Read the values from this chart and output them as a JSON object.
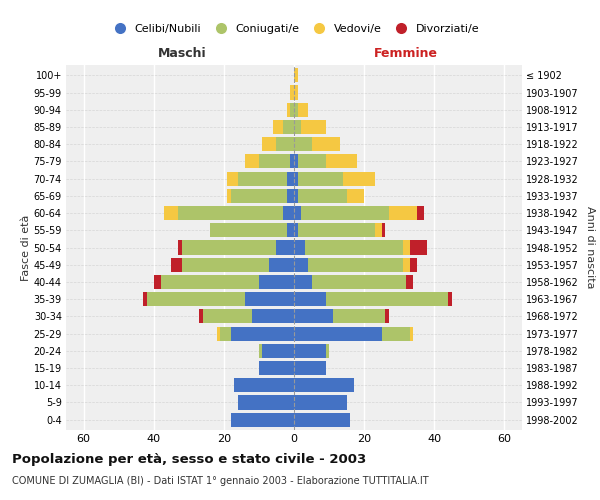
{
  "age_groups": [
    "0-4",
    "5-9",
    "10-14",
    "15-19",
    "20-24",
    "25-29",
    "30-34",
    "35-39",
    "40-44",
    "45-49",
    "50-54",
    "55-59",
    "60-64",
    "65-69",
    "70-74",
    "75-79",
    "80-84",
    "85-89",
    "90-94",
    "95-99",
    "100+"
  ],
  "birth_years": [
    "1998-2002",
    "1993-1997",
    "1988-1992",
    "1983-1987",
    "1978-1982",
    "1973-1977",
    "1968-1972",
    "1963-1967",
    "1958-1962",
    "1953-1957",
    "1948-1952",
    "1943-1947",
    "1938-1942",
    "1933-1937",
    "1928-1932",
    "1923-1927",
    "1918-1922",
    "1913-1917",
    "1908-1912",
    "1903-1907",
    "≤ 1902"
  ],
  "male_celibe": [
    18,
    16,
    17,
    10,
    9,
    18,
    12,
    14,
    10,
    7,
    5,
    2,
    3,
    2,
    2,
    1,
    0,
    0,
    0,
    0,
    0
  ],
  "male_coniugato": [
    0,
    0,
    0,
    0,
    1,
    3,
    14,
    28,
    28,
    25,
    27,
    22,
    30,
    16,
    14,
    9,
    5,
    3,
    1,
    0,
    0
  ],
  "male_vedovo": [
    0,
    0,
    0,
    0,
    0,
    1,
    0,
    0,
    0,
    0,
    0,
    0,
    4,
    1,
    3,
    4,
    4,
    3,
    1,
    1,
    0
  ],
  "male_divorziato": [
    0,
    0,
    0,
    0,
    0,
    0,
    1,
    1,
    2,
    3,
    1,
    0,
    0,
    0,
    0,
    0,
    0,
    0,
    0,
    0,
    0
  ],
  "female_celibe": [
    16,
    15,
    17,
    9,
    9,
    25,
    11,
    9,
    5,
    4,
    3,
    1,
    2,
    1,
    1,
    1,
    0,
    0,
    0,
    0,
    0
  ],
  "female_coniugato": [
    0,
    0,
    0,
    0,
    1,
    8,
    15,
    35,
    27,
    27,
    28,
    22,
    25,
    14,
    13,
    8,
    5,
    2,
    1,
    0,
    0
  ],
  "female_vedovo": [
    0,
    0,
    0,
    0,
    0,
    1,
    0,
    0,
    0,
    2,
    2,
    2,
    8,
    5,
    9,
    9,
    8,
    7,
    3,
    1,
    1
  ],
  "female_divorziato": [
    0,
    0,
    0,
    0,
    0,
    0,
    1,
    1,
    2,
    2,
    5,
    1,
    2,
    0,
    0,
    0,
    0,
    0,
    0,
    0,
    0
  ],
  "colors": {
    "celibe": "#4472c4",
    "coniugato": "#adc469",
    "vedovo": "#f5c842",
    "divorziato": "#c0202a"
  },
  "legend_labels": [
    "Celibi/Nubili",
    "Coniugati/e",
    "Vedovi/e",
    "Divorziati/e"
  ],
  "xlabel_left": "Maschi",
  "xlabel_right": "Femmine",
  "ylabel_left": "Fasce di età",
  "ylabel_right": "Anni di nascita",
  "title": "Popolazione per età, sesso e stato civile - 2003",
  "subtitle": "COMUNE DI ZUMAGLIA (BI) - Dati ISTAT 1° gennaio 2003 - Elaborazione TUTTITALIA.IT",
  "xlim": 65,
  "bg_color": "#ffffff",
  "plot_bg": "#efefef"
}
